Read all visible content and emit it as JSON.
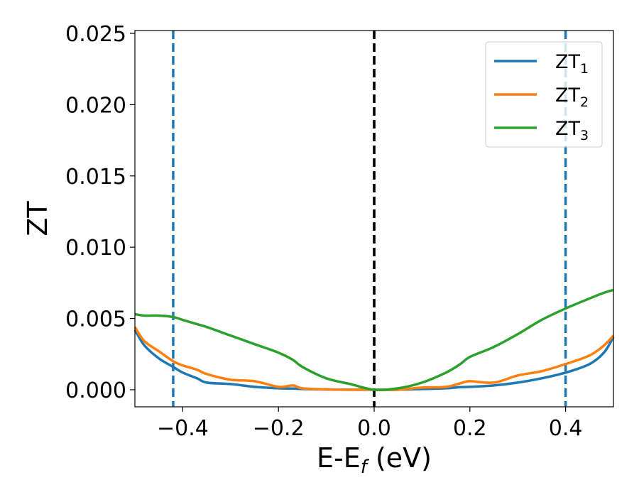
{
  "chart_data": {
    "type": "line",
    "title": "",
    "xlabel": "E-E",
    "xlabel_sub": "f",
    "xlabel_unit": " (eV)",
    "ylabel": "ZT",
    "xlim": [
      -0.5,
      0.5
    ],
    "ylim": [
      -0.0012,
      0.0252
    ],
    "xticks": [
      -0.4,
      -0.2,
      0.0,
      0.2,
      0.4
    ],
    "xtick_labels": [
      "−0.4",
      "−0.2",
      "0.0",
      "0.2",
      "0.4"
    ],
    "yticks": [
      0.0,
      0.005,
      0.01,
      0.015,
      0.02,
      0.025
    ],
    "ytick_labels": [
      "0.000",
      "0.005",
      "0.010",
      "0.015",
      "0.020",
      "0.025"
    ],
    "grid": false,
    "legend_position": "top-right",
    "vlines": [
      {
        "x": -0.42,
        "style": "dashed",
        "color": "#1f77b4"
      },
      {
        "x": 0.0,
        "style": "dashed",
        "color": "#1f77b4"
      },
      {
        "x": 0.4,
        "style": "dashed",
        "color": "#1f77b4"
      },
      {
        "x": 0.0,
        "style": "dashed",
        "color": "#000000"
      }
    ],
    "x": [
      -0.5,
      -0.48,
      -0.45,
      -0.42,
      -0.4,
      -0.37,
      -0.35,
      -0.3,
      -0.25,
      -0.2,
      -0.17,
      -0.15,
      -0.1,
      -0.05,
      0.0,
      0.05,
      0.1,
      0.15,
      0.18,
      0.2,
      0.25,
      0.3,
      0.35,
      0.4,
      0.45,
      0.48,
      0.5
    ],
    "series": [
      {
        "name": "ZT",
        "name_sub": "1",
        "color": "#1f77b4",
        "values": [
          0.0042,
          0.0031,
          0.0022,
          0.0016,
          0.0012,
          0.0008,
          0.0005,
          0.0004,
          0.0002,
          0.0001,
          8e-05,
          5e-05,
          2e-05,
          0.0,
          0.0,
          0.0,
          5e-05,
          0.0001,
          0.00018,
          0.0002,
          0.0003,
          0.0005,
          0.0008,
          0.0012,
          0.0018,
          0.0026,
          0.0037
        ]
      },
      {
        "name": "ZT",
        "name_sub": "2",
        "color": "#ff7f0e",
        "values": [
          0.0044,
          0.0034,
          0.0027,
          0.002,
          0.0017,
          0.0014,
          0.0011,
          0.0007,
          0.0006,
          0.0002,
          0.0003,
          0.0001,
          2e-05,
          0.0,
          0.0,
          0.0,
          0.00015,
          0.0002,
          0.00045,
          0.0006,
          0.0005,
          0.001,
          0.0013,
          0.0018,
          0.0024,
          0.0031,
          0.0038
        ]
      },
      {
        "name": "ZT",
        "name_sub": "3",
        "color": "#2ca02c",
        "values": [
          0.0053,
          0.0052,
          0.0052,
          0.0051,
          0.0049,
          0.0046,
          0.0044,
          0.0038,
          0.0032,
          0.0026,
          0.0021,
          0.0016,
          0.0008,
          0.0004,
          0.0,
          0.0001,
          0.0005,
          0.0012,
          0.0018,
          0.0023,
          0.003,
          0.0039,
          0.0049,
          0.0057,
          0.0064,
          0.0068,
          0.007
        ]
      }
    ]
  }
}
